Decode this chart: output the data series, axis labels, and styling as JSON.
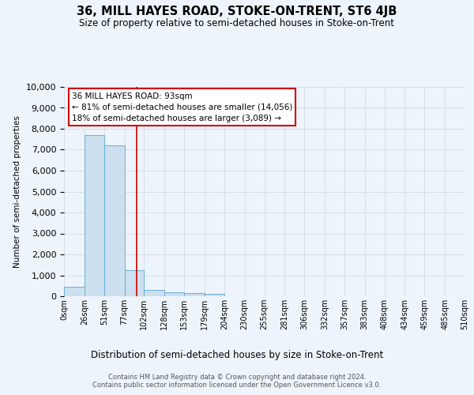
{
  "title": "36, MILL HAYES ROAD, STOKE-ON-TRENT, ST6 4JB",
  "subtitle": "Size of property relative to semi-detached houses in Stoke-on-Trent",
  "xlabel": "Distribution of semi-detached houses by size in Stoke-on-Trent",
  "ylabel": "Number of semi-detached properties",
  "footer_line1": "Contains HM Land Registry data © Crown copyright and database right 2024.",
  "footer_line2": "Contains public sector information licensed under the Open Government Licence v3.0.",
  "annotation_title": "36 MILL HAYES ROAD: 93sqm",
  "annotation_line1": "← 81% of semi-detached houses are smaller (14,056)",
  "annotation_line2": "18% of semi-detached houses are larger (3,089) →",
  "property_size_sqm": 93,
  "bin_edges": [
    0,
    26,
    51,
    77,
    102,
    128,
    153,
    179,
    204,
    230,
    255,
    281,
    306,
    332,
    357,
    383,
    408,
    434,
    459,
    485,
    510
  ],
  "bin_labels": [
    "0sqm",
    "26sqm",
    "51sqm",
    "77sqm",
    "102sqm",
    "128sqm",
    "153sqm",
    "179sqm",
    "204sqm",
    "230sqm",
    "255sqm",
    "281sqm",
    "306sqm",
    "332sqm",
    "357sqm",
    "383sqm",
    "408sqm",
    "434sqm",
    "459sqm",
    "485sqm",
    "510sqm"
  ],
  "counts": [
    450,
    7700,
    7200,
    1250,
    300,
    200,
    140,
    100,
    0,
    0,
    0,
    0,
    0,
    0,
    0,
    0,
    0,
    0,
    0,
    0
  ],
  "bar_color": "#cce0f0",
  "bar_edge_color": "#6aafd6",
  "vline_color": "#cc0000",
  "background_color": "#eef4fb",
  "grid_color": "#d0dce8",
  "ylim_max": 10000,
  "yticks": [
    0,
    1000,
    2000,
    3000,
    4000,
    5000,
    6000,
    7000,
    8000,
    9000,
    10000
  ],
  "fig_width": 6.0,
  "fig_height": 5.0,
  "dpi": 100
}
